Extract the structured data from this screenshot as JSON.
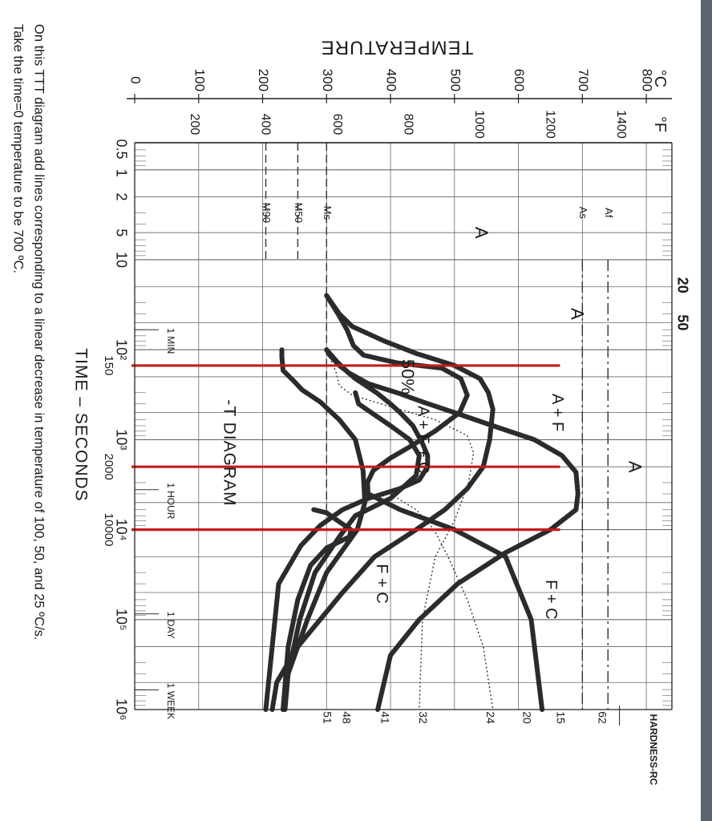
{
  "chart_data": {
    "type": "line",
    "chart_title": "-T DIAGRAM",
    "xlabel": "TIME – SECONDS",
    "ylabel": "TEMPERATURE",
    "unit_c": "°C",
    "unit_f": "°F",
    "hardness_label": "HARDNESS-RC",
    "x_scale": "log",
    "xlim": [
      0.5,
      1000000
    ],
    "ylim": [
      0,
      840
    ],
    "x_ticks": [
      {
        "value": 0.5,
        "label": "0.5"
      },
      {
        "value": 1,
        "label": "1"
      },
      {
        "value": 2,
        "label": "2"
      },
      {
        "value": 5,
        "label": "5"
      },
      {
        "value": 10,
        "label": "10"
      },
      {
        "value": 100,
        "label": "10²"
      },
      {
        "value": 1000,
        "label": "10³"
      },
      {
        "value": 10000,
        "label": "10⁴"
      },
      {
        "value": 100000,
        "label": "10⁵"
      },
      {
        "value": 1000000,
        "label": "10⁶"
      }
    ],
    "x_ticks_top": [
      {
        "value": 20,
        "label": "20"
      },
      {
        "value": 50,
        "label": "50"
      }
    ],
    "time_marks": [
      {
        "value": 60,
        "label": "1 MIN"
      },
      {
        "value": 3600,
        "label": "1 HOUR"
      },
      {
        "value": 86400,
        "label": "1 DAY"
      },
      {
        "value": 604800,
        "label": "1 WEEK"
      }
    ],
    "red_x_labels": [
      {
        "value": 150,
        "label": "150"
      },
      {
        "value": 2000,
        "label": "2000"
      },
      {
        "value": 10000,
        "label": "10000"
      }
    ],
    "y_ticks_c": [
      0,
      100,
      200,
      300,
      400,
      500,
      600,
      700,
      800
    ],
    "y_ticks_f": [
      {
        "c": 93,
        "label": "200"
      },
      {
        "c": 204,
        "label": "400"
      },
      {
        "c": 316,
        "label": "600"
      },
      {
        "c": 427,
        "label": "800"
      },
      {
        "c": 538,
        "label": "1000"
      },
      {
        "c": 649,
        "label": "1200"
      },
      {
        "c": 760,
        "label": "1400"
      }
    ],
    "hardness": [
      {
        "c": 300,
        "label": "51"
      },
      {
        "c": 330,
        "label": "48"
      },
      {
        "c": 390,
        "label": "41"
      },
      {
        "c": 450,
        "label": "32"
      },
      {
        "c": 555,
        "label": "24"
      },
      {
        "c": 612,
        "label": "20"
      },
      {
        "c": 665,
        "label": "15"
      },
      {
        "c": 730,
        "label": "62"
      }
    ],
    "reference_lines": [
      {
        "name": "Af",
        "temp": 740
      },
      {
        "name": "As",
        "temp": 700
      },
      {
        "name": "Ms",
        "temp": 300
      },
      {
        "name": "M50",
        "temp": 255
      },
      {
        "name": "M90",
        "temp": 205
      }
    ],
    "region_labels": [
      {
        "text": "A",
        "time": 5,
        "temp": 540
      },
      {
        "text": "A",
        "time": 40,
        "temp": 690
      },
      {
        "text": "A",
        "time": 2000,
        "temp": 780
      },
      {
        "text": "A + F",
        "time": 500,
        "temp": 660
      },
      {
        "text": "A + F + C",
        "time": 1000,
        "temp": 450
      },
      {
        "text": "F + C",
        "time": 40000,
        "temp": 385
      },
      {
        "text": "F + C",
        "time": 60000,
        "temp": 650
      },
      {
        "text": "50%",
        "time": 200,
        "temp": 425
      }
    ],
    "series": [
      {
        "values": [
          [
            25,
            300
          ],
          [
            40,
            320
          ],
          [
            55,
            340
          ],
          [
            80,
            390
          ],
          [
            110,
            440
          ],
          [
            150,
            500
          ],
          [
            210,
            540
          ],
          [
            300,
            553
          ],
          [
            460,
            560
          ],
          [
            1000,
            555
          ],
          [
            2000,
            545
          ],
          [
            3500,
            520
          ],
          [
            6000,
            485
          ],
          [
            10000,
            440
          ],
          [
            20000,
            375
          ],
          [
            50000,
            325
          ],
          [
            100000,
            290
          ],
          [
            200000,
            255
          ],
          [
            500000,
            222
          ],
          [
            1000000,
            215
          ]
        ]
      },
      {
        "values": [
          [
            25,
            300
          ],
          [
            40,
            318
          ],
          [
            60,
            332
          ],
          [
            90,
            342
          ],
          [
            115,
            358
          ],
          [
            140,
            410
          ],
          [
            160,
            480
          ],
          [
            210,
            510
          ],
          [
            320,
            520
          ],
          [
            500,
            508
          ],
          [
            800,
            470
          ],
          [
            1200,
            430
          ],
          [
            1600,
            400
          ],
          [
            2200,
            373
          ],
          [
            3000,
            364
          ],
          [
            4000,
            365
          ],
          [
            6000,
            415
          ],
          [
            10000,
            500
          ],
          [
            20000,
            580
          ],
          [
            100000,
            620
          ],
          [
            1000000,
            637
          ]
        ]
      },
      {
        "values": [
          [
            100,
            300
          ],
          [
            115,
            305
          ],
          [
            150,
            320
          ],
          [
            170,
            330
          ],
          [
            210,
            345
          ],
          [
            300,
            378
          ],
          [
            400,
            400
          ],
          [
            500,
            415
          ],
          [
            700,
            435
          ],
          [
            1100,
            450
          ],
          [
            1500,
            458
          ],
          [
            2000,
            458
          ],
          [
            2800,
            445
          ],
          [
            3500,
            415
          ],
          [
            4500,
            365
          ],
          [
            6000,
            325
          ],
          [
            9000,
            290
          ],
          [
            15000,
            260
          ],
          [
            40000,
            225
          ],
          [
            1000000,
            205
          ]
        ]
      },
      {
        "values": [
          [
            100,
            300
          ],
          [
            140,
            318
          ],
          [
            180,
            334
          ],
          [
            240,
            366
          ],
          [
            300,
            410
          ],
          [
            380,
            450
          ],
          [
            500,
            500
          ],
          [
            700,
            560
          ],
          [
            1000,
            625
          ],
          [
            1500,
            668
          ],
          [
            2300,
            690
          ],
          [
            4000,
            693
          ],
          [
            6000,
            690
          ],
          [
            10000,
            650
          ],
          [
            18000,
            580
          ],
          [
            40000,
            505
          ],
          [
            100000,
            445
          ],
          [
            250000,
            400
          ],
          [
            1000000,
            380
          ]
        ]
      },
      {
        "values": [
          [
            100,
            230
          ],
          [
            120,
            230
          ],
          [
            170,
            232
          ],
          [
            220,
            248
          ],
          [
            280,
            262
          ],
          [
            380,
            290
          ],
          [
            600,
            320
          ],
          [
            1000,
            345
          ],
          [
            2200,
            357
          ],
          [
            5000,
            360
          ],
          [
            10000,
            348
          ],
          [
            30000,
            300
          ],
          [
            100000,
            270
          ],
          [
            400000,
            240
          ],
          [
            1000000,
            232
          ]
        ]
      },
      {
        "values": [
          [
            300,
            345
          ],
          [
            400,
            350
          ],
          [
            500,
            370
          ],
          [
            700,
            400
          ],
          [
            1000,
            430
          ],
          [
            1500,
            445
          ],
          [
            2500,
            440
          ],
          [
            4500,
            400
          ],
          [
            7000,
            345
          ],
          [
            12000,
            320
          ],
          [
            30000,
            282
          ],
          [
            100000,
            258
          ],
          [
            400000,
            240
          ],
          [
            1000000,
            235
          ]
        ]
      },
      {
        "values": [
          [
            6000,
            280
          ],
          [
            6500,
            300
          ],
          [
            8000,
            318
          ],
          [
            10000,
            338
          ],
          [
            12000,
            336
          ],
          [
            16000,
            300
          ],
          [
            25000,
            275
          ],
          [
            60000,
            255
          ],
          [
            200000,
            240
          ],
          [
            1000000,
            232
          ]
        ]
      }
    ],
    "dotted_series": [
      {
        "values": [
          [
            100,
            300
          ],
          [
            180,
            315
          ],
          [
            250,
            320
          ],
          [
            320,
            340
          ],
          [
            420,
            395
          ],
          [
            600,
            470
          ],
          [
            900,
            520
          ],
          [
            1400,
            530
          ],
          [
            3000,
            522
          ],
          [
            8000,
            500
          ],
          [
            20000,
            470
          ],
          [
            100000,
            450
          ],
          [
            1000000,
            445
          ]
        ]
      },
      {
        "values": [
          [
            4000,
            400
          ],
          [
            6000,
            440
          ],
          [
            10000,
            468
          ],
          [
            20000,
            490
          ],
          [
            60000,
            520
          ],
          [
            200000,
            545
          ],
          [
            1000000,
            560
          ]
        ]
      }
    ],
    "red_lines": [
      {
        "time": 150,
        "temp": 665
      },
      {
        "time": 2000,
        "temp": 665
      },
      {
        "time": 10000,
        "temp": 665
      }
    ],
    "red_color": "#c51b1b",
    "curve_color": "#2b2b2b"
  },
  "question": {
    "line1": "On this TTT diagram add lines corresponding to a linear decrease in temperature of 100, 50, and 25 ºC/s.",
    "line2": "Take the time=0 temperature to be 700 ºC."
  }
}
